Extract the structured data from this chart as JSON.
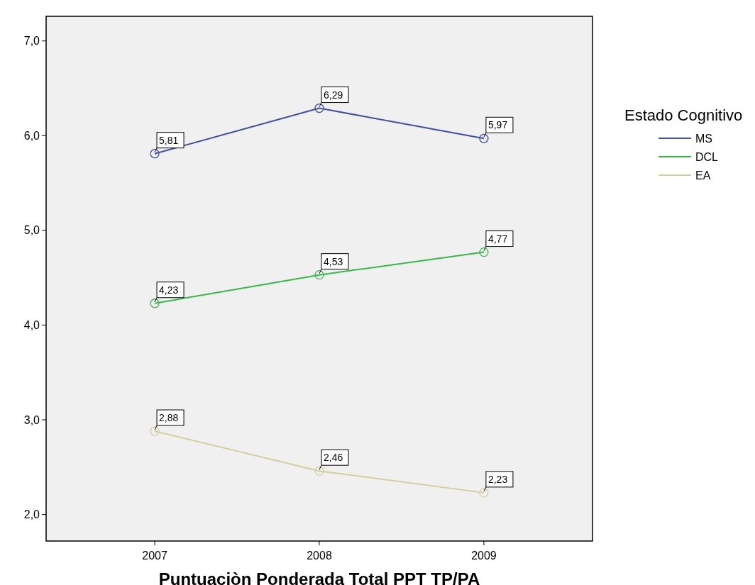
{
  "chart_data": {
    "type": "line",
    "xlabel": "Puntuaciòn Ponderada Total PPT TP/PA",
    "legend_title": "Estado Cognitivo",
    "legend": "right",
    "marker": "circle",
    "categories": [
      "2007",
      "2008",
      "2009"
    ],
    "ylim": [
      1.72,
      7.26
    ],
    "yticks": [
      {
        "value": 2,
        "label": "2,0"
      },
      {
        "value": 3,
        "label": "3,0"
      },
      {
        "value": 4,
        "label": "4,0"
      },
      {
        "value": 5,
        "label": "5,0"
      },
      {
        "value": 6,
        "label": "6,0"
      },
      {
        "value": 7,
        "label": "7,0"
      }
    ],
    "series": [
      {
        "name": "MS",
        "color": "#3c50a8",
        "values": [
          5.81,
          6.29,
          5.97
        ],
        "value_labels": [
          "5,81",
          "6,29",
          "5,97"
        ]
      },
      {
        "name": "DCL",
        "color": "#34bb46",
        "values": [
          4.23,
          4.53,
          4.77
        ],
        "value_labels": [
          "4,23",
          "4,53",
          "4,77"
        ]
      },
      {
        "name": "EA",
        "color": "#d4cf98",
        "values": [
          2.88,
          2.46,
          2.23
        ],
        "value_labels": [
          "2,88",
          "2,46",
          "2,23"
        ]
      }
    ]
  }
}
